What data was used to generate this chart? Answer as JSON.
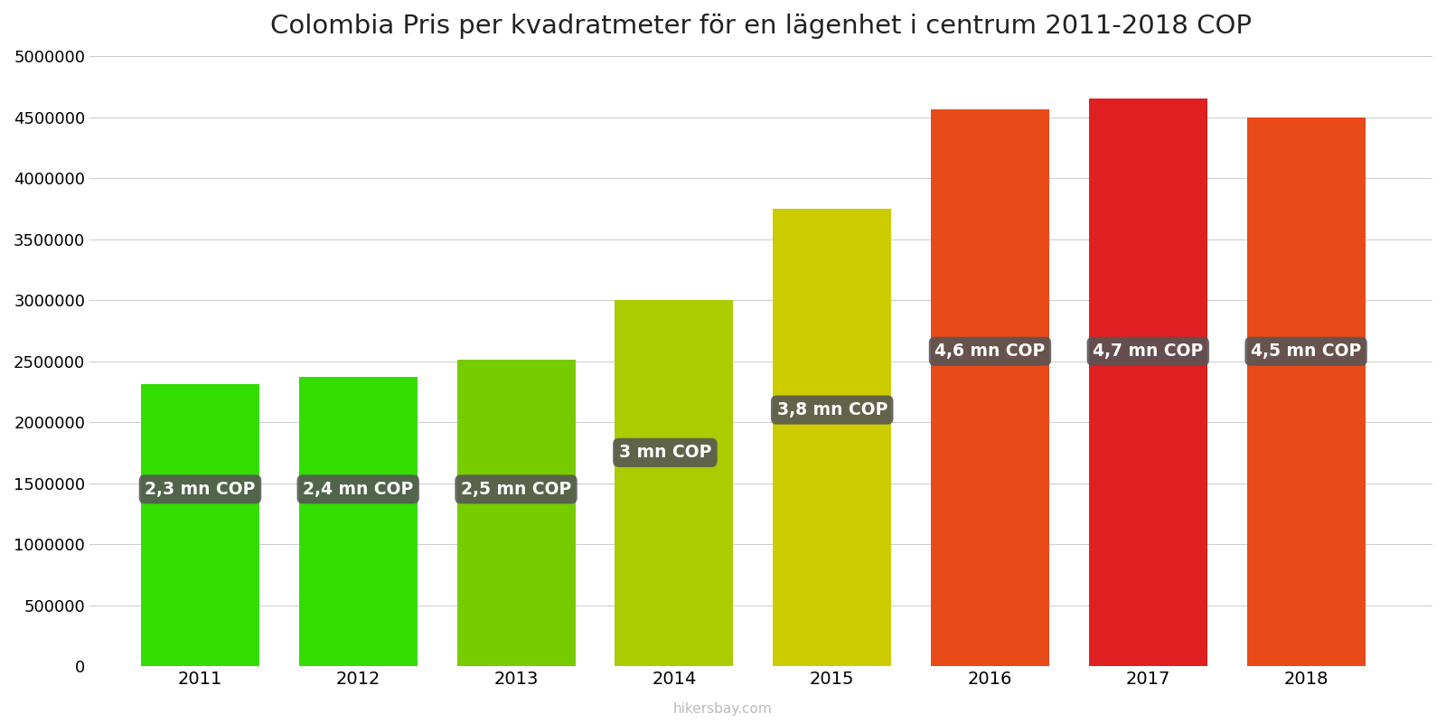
{
  "title": "Colombia Pris per kvadratmeter för en lägenhet i centrum 2011-2018 COP",
  "years": [
    2011,
    2012,
    2013,
    2014,
    2015,
    2016,
    2017,
    2018
  ],
  "values": [
    2310000,
    2370000,
    2510000,
    3000000,
    3750000,
    4560000,
    4650000,
    4500000
  ],
  "bar_colors": [
    "#33dd00",
    "#33dd00",
    "#77cc00",
    "#aacc00",
    "#cccc00",
    "#e84a1a",
    "#e02020",
    "#e84a1a"
  ],
  "labels": [
    "2,3 mn COP",
    "2,4 mn COP",
    "2,5 mn COP",
    "3 mn COP",
    "3,8 mn COP",
    "4,6 mn COP",
    "4,7 mn COP",
    "4,5 mn COP"
  ],
  "ylim": [
    0,
    5000000
  ],
  "yticks": [
    0,
    500000,
    1000000,
    1500000,
    2000000,
    2500000,
    3000000,
    3500000,
    4000000,
    4500000,
    5000000
  ],
  "ytick_labels": [
    "0",
    "500000",
    "1000000",
    "1500000",
    "2000000",
    "2500000",
    "3000000",
    "3500000",
    "4000000",
    "4500000",
    "5000000"
  ],
  "background_color": "#ffffff",
  "label_box_color": "#555555",
  "label_text_color": "#ffffff",
  "title_fontsize": 21,
  "bar_width": 0.75,
  "watermark": "hikersbay.com"
}
